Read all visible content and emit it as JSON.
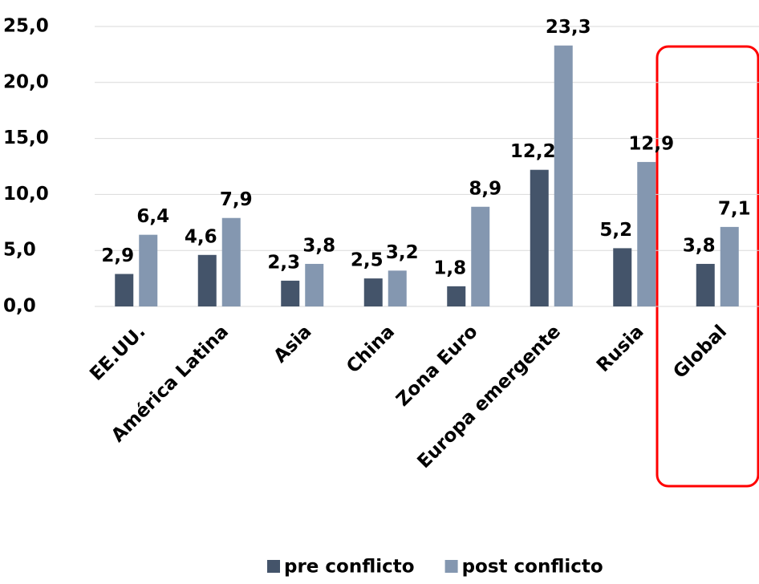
{
  "chart_data": {
    "type": "bar",
    "categories": [
      "EE.UU.",
      "América Latina",
      "Asia",
      "China",
      "Zona Euro",
      "Europa emergente",
      "Rusia",
      "Global"
    ],
    "series": [
      {
        "name": "pre conflicto",
        "color": "#44546a",
        "values": [
          2.9,
          4.6,
          2.3,
          2.5,
          1.8,
          12.2,
          5.2,
          3.8
        ],
        "value_labels": [
          "2,9",
          "4,6",
          "2,3",
          "2,5",
          "1,8",
          "12,2",
          "5,2",
          "3,8"
        ]
      },
      {
        "name": "post conflicto",
        "color": "#8497b0",
        "values": [
          6.4,
          7.9,
          3.8,
          3.2,
          8.9,
          23.3,
          12.9,
          7.1
        ],
        "value_labels": [
          "6,4",
          "7,9",
          "3,8",
          "3,2",
          "8,9",
          "23,3",
          "12,9",
          "7,1"
        ]
      }
    ],
    "ylim": [
      0,
      25
    ],
    "yticks": [
      {
        "value": 0,
        "label": "0,0"
      },
      {
        "value": 5,
        "label": "5,0"
      },
      {
        "value": 10,
        "label": "10,0"
      },
      {
        "value": 15,
        "label": "15,0"
      },
      {
        "value": 20,
        "label": "20,0"
      },
      {
        "value": 25,
        "label": "25,0"
      }
    ],
    "grid": true,
    "legend": "bottom"
  }
}
